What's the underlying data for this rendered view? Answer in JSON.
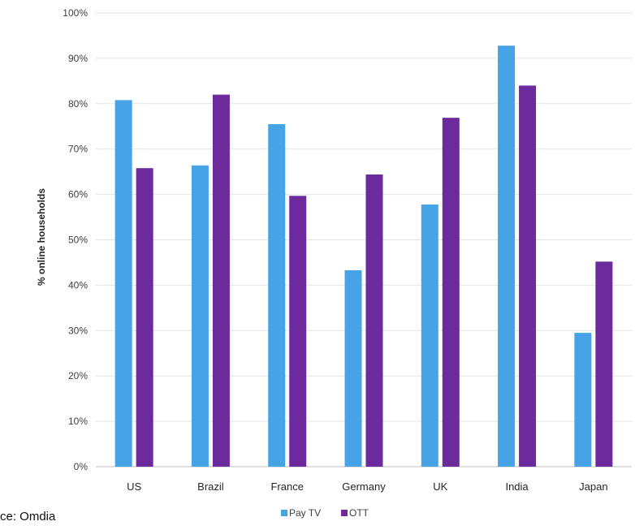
{
  "chart_data": {
    "type": "bar",
    "categories": [
      "US",
      "Brazil",
      "France",
      "Germany",
      "UK",
      "India",
      "Japan"
    ],
    "series": [
      {
        "name": "Pay TV",
        "color": "#46a3e6",
        "values": [
          80.8,
          66.4,
          75.5,
          43.3,
          57.8,
          92.8,
          29.5
        ]
      },
      {
        "name": "OTT",
        "color": "#6c2a9c",
        "values": [
          65.8,
          82.0,
          59.7,
          64.4,
          76.9,
          84.0,
          45.2
        ]
      }
    ],
    "ylabel": "% online households",
    "ylim": [
      0,
      100
    ],
    "yticks": [
      "0%",
      "10%",
      "20%",
      "30%",
      "40%",
      "50%",
      "60%",
      "70%",
      "80%",
      "90%",
      "100%"
    ],
    "grid": true,
    "legend_position": "bottom-center"
  },
  "footer": {
    "source_text": "ce: Omdia"
  }
}
